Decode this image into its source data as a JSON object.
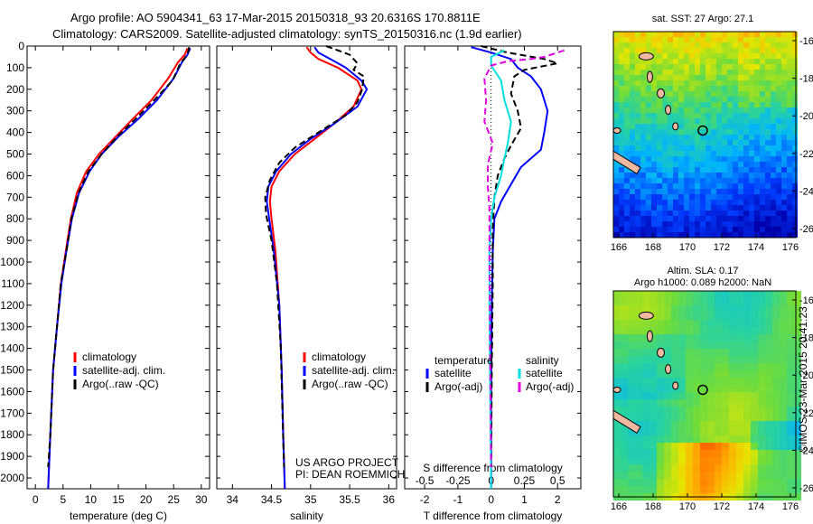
{
  "header": {
    "line1": "Argo profile: AO 5904341_63 17-Mar-2015 20150318_93 20.6316S 170.8811E",
    "line2": "Climatology: CARS2009. Satellite-adjusted climatology: synTS_20150316.nc (1.9d earlier)"
  },
  "side": {
    "stamp": "©IMOS 23-Mar-2015 20:41:23",
    "sst_title": "sat. SST: 27 Argo: 27.1",
    "sla_title1": "Altim. SLA: 0.17",
    "sla_title2": "Argo h1000: 0.089 h2000: NaN"
  },
  "project": {
    "line1": "US ARGO PROJECT",
    "line2": "PI: DEAN ROEMMICH"
  },
  "legends": {
    "left": [
      "climatology",
      "satellite-adj. clim.",
      "Argo(..raw -QC)"
    ],
    "diff_temperature": "temperature",
    "diff_salinity": "salinity",
    "diff_items_t": [
      "satellite",
      "Argo(-adj)"
    ],
    "diff_items_s": [
      "satellite",
      "Argo(-adj)"
    ]
  },
  "colors": {
    "climatology": "#ff0000",
    "satellite": "#0000ff",
    "argo": "#000000",
    "sat_s": "#00e0e0",
    "argo_s": "#e000e0"
  },
  "chart_data": [
    {
      "type": "line",
      "xlabel": "temperature (deg C)",
      "ylabel": "",
      "xlim": [
        -1.5,
        31.5
      ],
      "ylim": [
        2050,
        0
      ],
      "xticks": [
        0,
        5,
        10,
        15,
        20,
        25,
        30
      ],
      "yticks": [
        0,
        100,
        200,
        300,
        400,
        500,
        600,
        700,
        800,
        900,
        1000,
        1100,
        1200,
        1300,
        1400,
        1500,
        1600,
        1700,
        1800,
        1900,
        2000
      ],
      "series": [
        {
          "name": "climatology",
          "color": "#ff0000",
          "dash": "",
          "points": [
            [
              27.5,
              10
            ],
            [
              27,
              40
            ],
            [
              25.8,
              75
            ],
            [
              24,
              150
            ],
            [
              21,
              250
            ],
            [
              17.5,
              340
            ],
            [
              14.5,
              420
            ],
            [
              11.5,
              500
            ],
            [
              9.2,
              580
            ],
            [
              7.5,
              680
            ],
            [
              6.4,
              800
            ],
            [
              5.5,
              950
            ],
            [
              4.6,
              1100
            ],
            [
              3.9,
              1300
            ],
            [
              3.2,
              1500
            ],
            [
              2.7,
              1800
            ],
            [
              2.3,
              2050
            ]
          ]
        },
        {
          "name": "satellite-adj. clim.",
          "color": "#0000ff",
          "dash": "",
          "points": [
            [
              28,
              10
            ],
            [
              27.5,
              40
            ],
            [
              26.5,
              75
            ],
            [
              25,
              150
            ],
            [
              22,
              250
            ],
            [
              18.5,
              340
            ],
            [
              15,
              420
            ],
            [
              12,
              500
            ],
            [
              9.8,
              580
            ],
            [
              7.9,
              680
            ],
            [
              6.6,
              800
            ],
            [
              5.6,
              950
            ],
            [
              4.7,
              1100
            ],
            [
              3.9,
              1300
            ],
            [
              3.2,
              1500
            ],
            [
              2.7,
              1800
            ],
            [
              2.3,
              2050
            ]
          ]
        },
        {
          "name": "Argo(..raw -QC)",
          "color": "#000000",
          "dash": "7,4",
          "points": [
            [
              27.8,
              5
            ],
            [
              27.5,
              40
            ],
            [
              26.2,
              80
            ],
            [
              24.8,
              160
            ],
            [
              21.5,
              250
            ],
            [
              18,
              340
            ],
            [
              14.8,
              420
            ],
            [
              12,
              500
            ],
            [
              9.6,
              580
            ],
            [
              7.8,
              680
            ],
            [
              6.5,
              800
            ],
            [
              5.6,
              950
            ],
            [
              4.6,
              1100
            ],
            [
              3.9,
              1300
            ],
            [
              3.2,
              1500
            ],
            [
              2.7,
              1800
            ],
            [
              2.3,
              1950
            ]
          ]
        }
      ]
    },
    {
      "type": "line",
      "xlabel": "salinity",
      "ylabel": "",
      "xlim": [
        33.8,
        36.1
      ],
      "ylim": [
        2050,
        0
      ],
      "xticks": [
        34,
        34.5,
        35,
        35.5,
        36
      ],
      "yticks": [],
      "series": [
        {
          "name": "climatology",
          "color": "#ff0000",
          "dash": "",
          "points": [
            [
              34.95,
              5
            ],
            [
              35,
              30
            ],
            [
              35.1,
              60
            ],
            [
              35.35,
              100
            ],
            [
              35.6,
              160
            ],
            [
              35.65,
              200
            ],
            [
              35.55,
              280
            ],
            [
              35.3,
              360
            ],
            [
              35.05,
              430
            ],
            [
              34.8,
              500
            ],
            [
              34.6,
              580
            ],
            [
              34.5,
              650
            ],
            [
              34.48,
              720
            ],
            [
              34.5,
              800
            ],
            [
              34.55,
              950
            ],
            [
              34.6,
              1200
            ],
            [
              34.63,
              1500
            ],
            [
              34.65,
              1800
            ],
            [
              34.67,
              2050
            ]
          ]
        },
        {
          "name": "satellite-adj. clim.",
          "color": "#0000ff",
          "dash": "",
          "points": [
            [
              35.05,
              5
            ],
            [
              35.1,
              30
            ],
            [
              35.25,
              60
            ],
            [
              35.45,
              100
            ],
            [
              35.65,
              160
            ],
            [
              35.72,
              200
            ],
            [
              35.6,
              280
            ],
            [
              35.3,
              360
            ],
            [
              35.0,
              430
            ],
            [
              34.75,
              500
            ],
            [
              34.56,
              580
            ],
            [
              34.46,
              650
            ],
            [
              34.44,
              720
            ],
            [
              34.47,
              800
            ],
            [
              34.53,
              950
            ],
            [
              34.6,
              1200
            ],
            [
              34.63,
              1500
            ],
            [
              34.65,
              1800
            ],
            [
              34.67,
              2050
            ]
          ]
        },
        {
          "name": "Argo(..raw -QC)",
          "color": "#000000",
          "dash": "7,4",
          "points": [
            [
              35.2,
              0
            ],
            [
              35.5,
              40
            ],
            [
              35.6,
              80
            ],
            [
              35.55,
              110
            ],
            [
              35.68,
              140
            ],
            [
              35.66,
              200
            ],
            [
              35.6,
              260
            ],
            [
              35.45,
              320
            ],
            [
              35.1,
              400
            ],
            [
              34.8,
              470
            ],
            [
              34.6,
              540
            ],
            [
              34.48,
              620
            ],
            [
              34.42,
              700
            ],
            [
              34.43,
              780
            ],
            [
              34.5,
              900
            ],
            [
              34.57,
              1100
            ],
            [
              34.62,
              1400
            ],
            [
              34.64,
              1700
            ],
            [
              34.66,
              1950
            ]
          ]
        }
      ]
    },
    {
      "type": "line",
      "xlabel": "T difference from climatology",
      "ylabel": "",
      "xlim": [
        -2.6,
        2.7
      ],
      "ylim": [
        2050,
        0
      ],
      "xticks": [
        -2,
        -1,
        0,
        1,
        2
      ],
      "xticks2": [
        "-0.5",
        "-0.25",
        "0",
        "0.25",
        "0.5"
      ],
      "xlabel2": "S difference from climatology",
      "yticks": [],
      "series": [
        {
          "name": "T satellite",
          "color": "#0000ff",
          "dash": "",
          "points": [
            [
              -0.6,
              5
            ],
            [
              0,
              30
            ],
            [
              0.6,
              60
            ],
            [
              0.8,
              100
            ],
            [
              1.2,
              140
            ],
            [
              1.5,
              200
            ],
            [
              1.7,
              300
            ],
            [
              1.6,
              400
            ],
            [
              1.5,
              480
            ],
            [
              0.9,
              560
            ],
            [
              0.6,
              640
            ],
            [
              0.3,
              720
            ],
            [
              0.1,
              800
            ],
            [
              0.05,
              950
            ],
            [
              0.02,
              1200
            ],
            [
              0,
              1600
            ],
            [
              0,
              2050
            ]
          ]
        },
        {
          "name": "T Argo(-adj)",
          "color": "#000000",
          "dash": "7,4",
          "points": [
            [
              -0.3,
              0
            ],
            [
              0.5,
              30
            ],
            [
              1.6,
              60
            ],
            [
              2,
              80
            ],
            [
              1,
              110
            ],
            [
              0.7,
              140
            ],
            [
              0.6,
              220
            ],
            [
              0.8,
              300
            ],
            [
              0.9,
              380
            ],
            [
              0.6,
              460
            ],
            [
              0.4,
              520
            ],
            [
              0.2,
              600
            ],
            [
              0.1,
              700
            ],
            [
              0.05,
              850
            ],
            [
              0.05,
              1100
            ],
            [
              0.02,
              1500
            ],
            [
              0,
              1950
            ]
          ]
        },
        {
          "name": "S satellite",
          "color": "#00e0e0",
          "dash": "",
          "points": [
            [
              0.4,
              20
            ],
            [
              0,
              50
            ],
            [
              0,
              90
            ],
            [
              0.3,
              160
            ],
            [
              0.4,
              250
            ],
            [
              0.6,
              350
            ],
            [
              0.5,
              450
            ],
            [
              0.4,
              520
            ],
            [
              0.3,
              600
            ],
            [
              0.1,
              700
            ],
            [
              0,
              800
            ],
            [
              -0.05,
              950
            ],
            [
              -0.05,
              1200
            ],
            [
              -0.03,
              1600
            ],
            [
              0,
              2050
            ]
          ]
        },
        {
          "name": "S Argo(-adj)",
          "color": "#e000e0",
          "dash": "7,4",
          "points": [
            [
              2.2,
              20
            ],
            [
              1.6,
              50
            ],
            [
              1.2,
              60
            ],
            [
              0.5,
              70
            ],
            [
              0,
              90
            ],
            [
              -0.2,
              150
            ],
            [
              -0.15,
              250
            ],
            [
              -0.2,
              350
            ],
            [
              0.05,
              450
            ],
            [
              -0.1,
              550
            ],
            [
              -0.1,
              650
            ],
            [
              -0.05,
              750
            ],
            [
              -0.05,
              1000
            ],
            [
              -0.03,
              1400
            ],
            [
              0,
              1950
            ]
          ]
        }
      ]
    }
  ],
  "maps": {
    "lon_ticks": [
      "166",
      "168",
      "170",
      "172",
      "174",
      "176"
    ],
    "lat_ticks": [
      "-16",
      "-18",
      "-20",
      "-22",
      "-24",
      "-26"
    ]
  }
}
